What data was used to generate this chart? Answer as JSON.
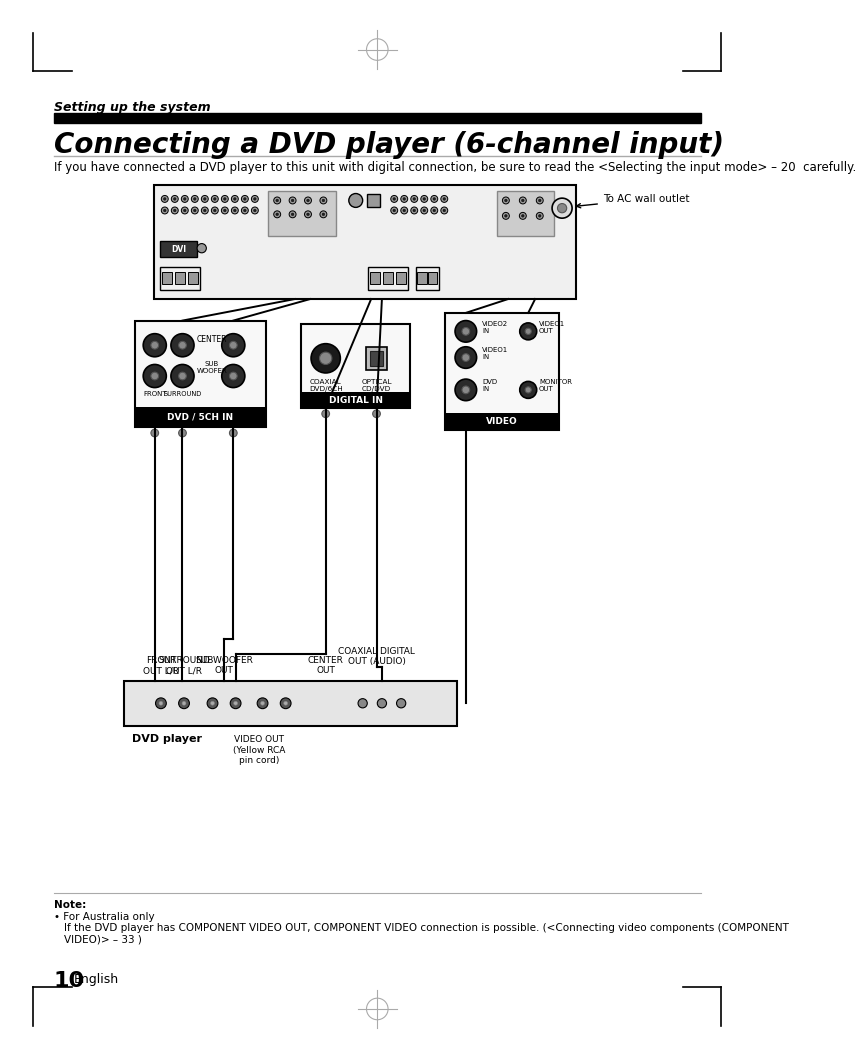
{
  "page_title": "Setting up the system",
  "main_title": "Connecting a DVD player (6-channel input)",
  "subtitle": "If you have connected a DVD player to this unit with digital connection, be sure to read the <Selecting the input mode> – 20  carefully.",
  "note_label": "Note:",
  "note_bullet": "• For Australia only",
  "note_text": "If the DVD player has COMPONENT VIDEO OUT, COMPONENT VIDEO connection is possible. (<Connecting video components (COMPONENT\nVIDEO)> – 33 )",
  "page_number": "10",
  "page_lang": "English",
  "bg_color": "#ffffff",
  "title_bar_color": "#000000"
}
